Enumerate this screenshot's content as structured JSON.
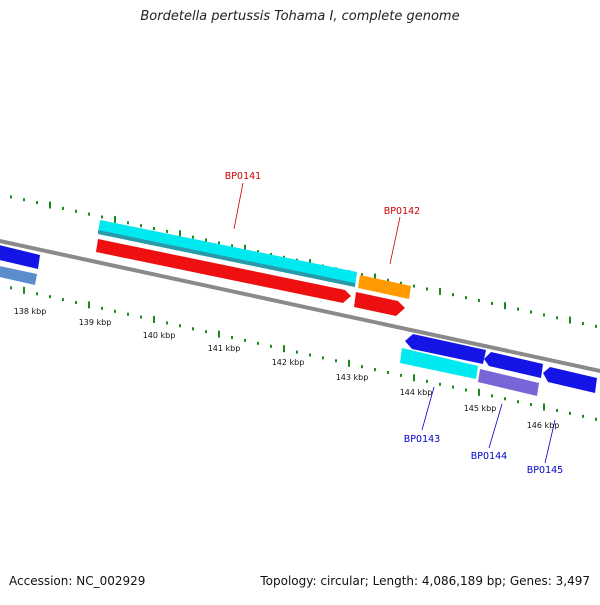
{
  "title": "Bordetella pertussis Tohama I, complete genome",
  "footer": {
    "accession": "Accession: NC_002929",
    "summary": "Topology: circular; Length: 4,086,189 bp; Genes: 3,497"
  },
  "scale_labels": [
    "138 kbp",
    "139 kbp",
    "140 kbp",
    "141 kbp",
    "142 kbp",
    "143 kbp",
    "144 kbp",
    "145 kbp",
    "146 kbp"
  ],
  "gene_labels": [
    {
      "text": "BP0141",
      "color": "#cc0000"
    },
    {
      "text": "BP0142",
      "color": "#cc0000"
    },
    {
      "text": "BP0143",
      "color": "#0000cc"
    },
    {
      "text": "BP0144",
      "color": "#0000cc"
    },
    {
      "text": "BP0145",
      "color": "#0000cc"
    }
  ],
  "colors": {
    "backbone": "#808080",
    "ticks": "#1a8a1a",
    "cyan": "#00e5ee",
    "red": "#ee1111",
    "orange": "#ff9900",
    "blue": "#1010ee",
    "steel": "#5f8fc8",
    "purple": "#7a6ad8"
  }
}
